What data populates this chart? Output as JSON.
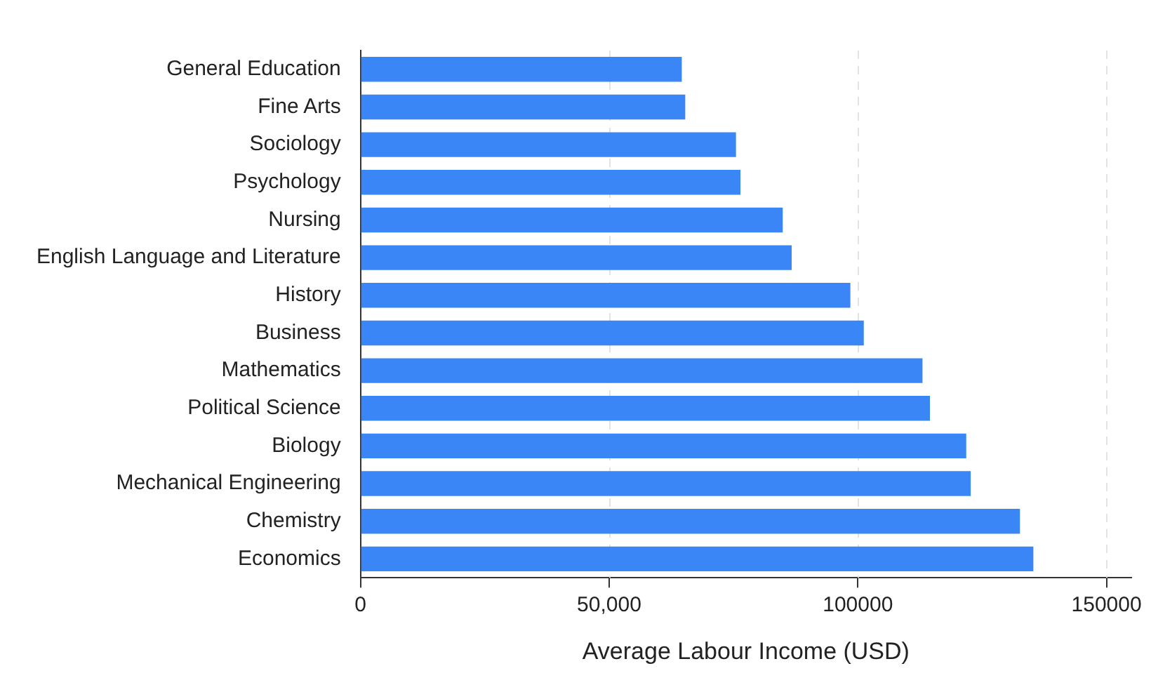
{
  "chart_data": {
    "type": "bar",
    "orientation": "horizontal",
    "xlabel": "Average Labour Income (USD)",
    "categories": [
      "General Education",
      "Fine Arts",
      "Sociology",
      "Psychology",
      "Nursing",
      "English Language and Literature",
      "History",
      "Business",
      "Mathematics",
      "Political Science",
      "Biology",
      "Mechanical Engineering",
      "Chemistry",
      "Economics"
    ],
    "values": [
      64600,
      65300,
      75500,
      76400,
      84900,
      86700,
      98500,
      101200,
      113000,
      114500,
      121800,
      122700,
      132600,
      135300
    ],
    "color": "#3b86f7",
    "xlim": [
      0,
      155000
    ],
    "xticks": [
      0,
      {
        "value": 50000,
        "label": "50,000"
      },
      {
        "value": 100000,
        "label": "100000"
      },
      {
        "value": 150000,
        "label": "150000"
      }
    ],
    "grid": "x",
    "legend": false
  }
}
